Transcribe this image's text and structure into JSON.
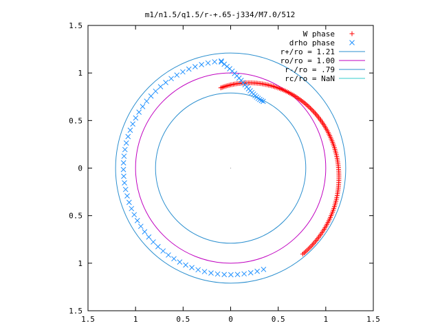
{
  "chart_data": {
    "type": "scatter",
    "title": "m1/n1.5/q1.5/r-+.65-j334/M7.0/512",
    "xlabel": "",
    "ylabel": "",
    "xlim": [
      -1.5,
      1.5
    ],
    "ylim": [
      -1.5,
      1.5
    ],
    "x_tick_values": [
      -1.5,
      -1,
      -0.5,
      0,
      0.5,
      1,
      1.5
    ],
    "x_tick_labels": [
      "1.5",
      "1",
      "0.5",
      "0",
      "0.5",
      "1",
      "1.5"
    ],
    "y_tick_values": [
      1.5,
      1,
      0.5,
      0,
      -0.5,
      -1,
      -1.5
    ],
    "y_tick_labels": [
      "1.5",
      "1",
      "0.5",
      "0",
      "0.5",
      "1",
      "1.5"
    ],
    "grid": false,
    "legend_position": "top-right",
    "legend": [
      {
        "label": "W phase",
        "marker": "+",
        "color": "#ff0000"
      },
      {
        "label": "drho phase",
        "marker": "x",
        "color": "#1e90ff"
      },
      {
        "label": "r+/ro = 1.21",
        "marker": "line",
        "color": "#2b8fcf"
      },
      {
        "label": "ro/ro = 1.00",
        "marker": "line",
        "color": "#c000c0"
      },
      {
        "label": "r-/ro = .79",
        "marker": "line",
        "color": "#2b8fcf"
      },
      {
        "label": "rc/ro = NaN",
        "marker": "line",
        "color": "#33cccc"
      }
    ],
    "circles": [
      {
        "name": "r+/ro = 1.21",
        "radius": 1.21,
        "color": "#2b8fcf"
      },
      {
        "name": "ro/ro = 1.00",
        "radius": 1.0,
        "color": "#c000c0"
      },
      {
        "name": "r-/ro = .79",
        "radius": 0.79,
        "color": "#2b8fcf"
      }
    ],
    "series": [
      {
        "name": "W phase",
        "marker": "+",
        "color": "#ff0000",
        "arc": {
          "radius_start": 0.85,
          "radius_end": 1.18,
          "angle_start_deg": 97,
          "angle_end_deg": -50,
          "points": 150
        }
      },
      {
        "name": "drho phase",
        "marker": "x",
        "color": "#1e90ff",
        "arc": {
          "radius_start": 1.12,
          "radius_end": 1.13,
          "angle_start_deg": -72,
          "angle_end_deg": -265,
          "points": 55
        },
        "tail": {
          "radius_start": 1.12,
          "radius_end": 0.78,
          "angle_start_deg": -265,
          "angle_end_deg": -296,
          "points": 22
        }
      }
    ]
  }
}
